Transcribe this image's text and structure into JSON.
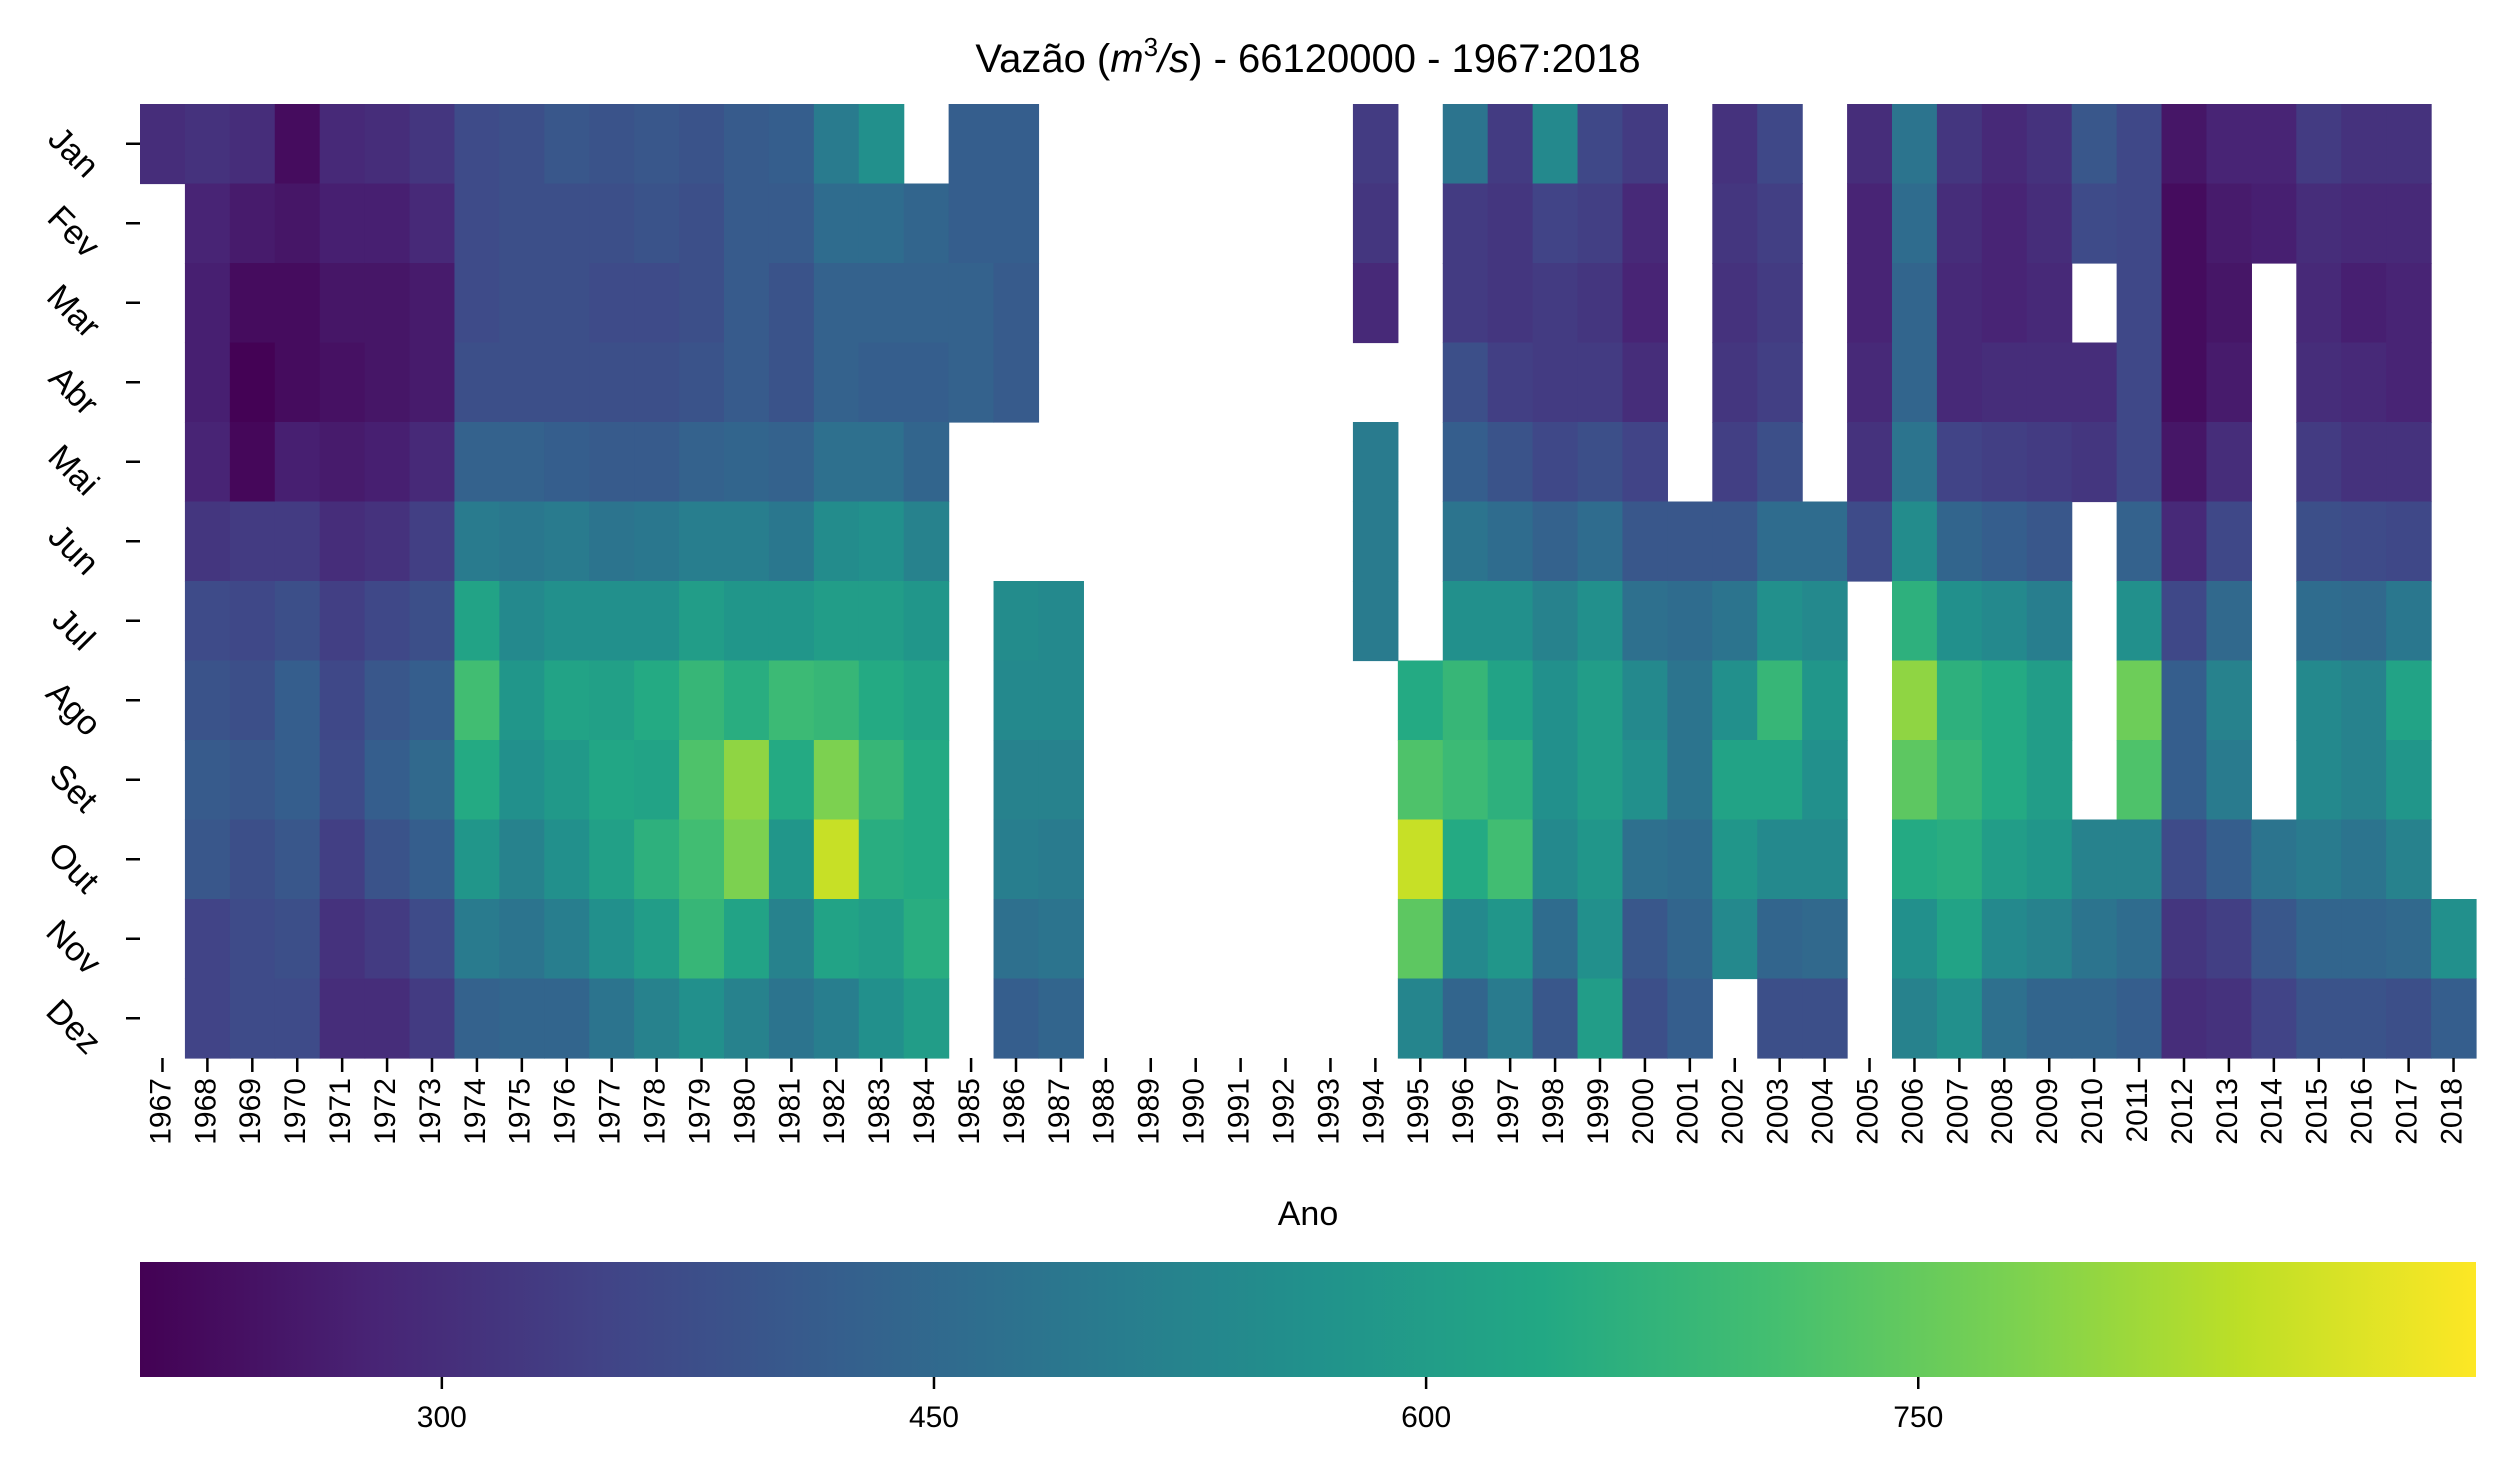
{
  "chart_data": {
    "type": "heatmap",
    "title": "Vazão (m³/s) - 66120000 - 1967:2018",
    "title_parts": [
      "Vazão (",
      "m",
      "3",
      "/",
      "s",
      ") - 66120000 - 1967:2018"
    ],
    "xlabel": "Ano",
    "ylabel": "",
    "colormap": "viridis",
    "colorbar": {
      "vmin": 208,
      "vmax": 920,
      "ticks": [
        "300",
        "450",
        "600",
        "750"
      ],
      "orientation": "horizontal",
      "placement": "bottom"
    },
    "months": [
      "Jan",
      "Fev",
      "Mar",
      "Abr",
      "Mai",
      "Jun",
      "Jul",
      "Ago",
      "Set",
      "Out",
      "Nov",
      "Dez"
    ],
    "years": [
      "1967",
      "1968",
      "1969",
      "1970",
      "1971",
      "1972",
      "1973",
      "1974",
      "1975",
      "1976",
      "1977",
      "1978",
      "1979",
      "1980",
      "1981",
      "1982",
      "1983",
      "1984",
      "1985",
      "1986",
      "1987",
      "1988",
      "1989",
      "1990",
      "1991",
      "1992",
      "1993",
      "1994",
      "1995",
      "1996",
      "1997",
      "1998",
      "1999",
      "2000",
      "2001",
      "2002",
      "2003",
      "2004",
      "2005",
      "2006",
      "2007",
      "2008",
      "2009",
      "2010",
      "2011",
      "2012",
      "2013",
      "2014",
      "2015",
      "2016",
      "2017",
      "2018"
    ],
    "values": [
      [
        300,
        null,
        null,
        null,
        null,
        null,
        null,
        null,
        null,
        null,
        null,
        null
      ],
      [
        310,
        280,
        270,
        270,
        280,
        320,
        370,
        390,
        410,
        400,
        350,
        350
      ],
      [
        300,
        260,
        230,
        210,
        220,
        330,
        360,
        380,
        400,
        380,
        370,
        370
      ],
      [
        230,
        250,
        230,
        230,
        270,
        330,
        380,
        420,
        420,
        400,
        380,
        370
      ],
      [
        290,
        270,
        250,
        240,
        260,
        300,
        340,
        360,
        370,
        340,
        310,
        300
      ],
      [
        300,
        270,
        250,
        250,
        270,
        310,
        360,
        400,
        420,
        390,
        330,
        300
      ],
      [
        320,
        290,
        260,
        260,
        290,
        340,
        380,
        420,
        450,
        420,
        370,
        330
      ],
      [
        370,
        370,
        370,
        380,
        430,
        500,
        620,
        700,
        640,
        580,
        500,
        430
      ],
      [
        380,
        380,
        380,
        380,
        430,
        490,
        540,
        580,
        560,
        520,
        480,
        440
      ],
      [
        400,
        380,
        380,
        380,
        420,
        500,
        560,
        620,
        590,
        560,
        510,
        440
      ],
      [
        390,
        380,
        370,
        380,
        410,
        480,
        560,
        610,
        630,
        610,
        560,
        480
      ],
      [
        400,
        390,
        370,
        380,
        410,
        490,
        560,
        640,
        620,
        660,
        600,
        520
      ],
      [
        390,
        380,
        380,
        390,
        430,
        510,
        600,
        680,
        720,
        700,
        680,
        560
      ],
      [
        410,
        410,
        410,
        410,
        440,
        510,
        580,
        650,
        800,
        780,
        620,
        520
      ],
      [
        420,
        410,
        390,
        390,
        430,
        490,
        580,
        690,
        640,
        580,
        520,
        480
      ],
      [
        500,
        460,
        430,
        430,
        470,
        550,
        600,
        680,
        780,
        860,
        620,
        510
      ],
      [
        560,
        460,
        430,
        420,
        470,
        560,
        600,
        640,
        680,
        650,
        600,
        560
      ],
      [
        null,
        440,
        430,
        420,
        440,
        520,
        580,
        620,
        640,
        640,
        650,
        600
      ],
      [
        420,
        420,
        430,
        430,
        null,
        null,
        null,
        null,
        null,
        null,
        null,
        null
      ],
      [
        420,
        420,
        410,
        410,
        null,
        null,
        550,
        540,
        520,
        510,
        470,
        420
      ],
      [
        null,
        null,
        null,
        null,
        null,
        null,
        540,
        540,
        520,
        500,
        480,
        440
      ],
      [
        null,
        null,
        null,
        null,
        null,
        null,
        null,
        null,
        null,
        null,
        null,
        null
      ],
      [
        null,
        null,
        null,
        null,
        null,
        null,
        null,
        null,
        null,
        null,
        null,
        null
      ],
      [
        null,
        null,
        null,
        null,
        null,
        null,
        null,
        null,
        null,
        null,
        null,
        null
      ],
      [
        null,
        null,
        null,
        null,
        null,
        null,
        null,
        null,
        null,
        null,
        null,
        null
      ],
      [
        null,
        null,
        null,
        null,
        null,
        null,
        null,
        null,
        null,
        null,
        null,
        null
      ],
      [
        null,
        null,
        null,
        null,
        null,
        null,
        null,
        null,
        null,
        null,
        null,
        null
      ],
      [
        330,
        320,
        290,
        null,
        500,
        500,
        500,
        null,
        null,
        null,
        null,
        null
      ],
      [
        null,
        null,
        null,
        null,
        null,
        null,
        null,
        640,
        720,
        860,
        740,
        530
      ],
      [
        480,
        330,
        330,
        380,
        420,
        480,
        560,
        680,
        690,
        640,
        540,
        440
      ],
      [
        330,
        320,
        320,
        340,
        390,
        460,
        560,
        620,
        660,
        700,
        580,
        500
      ],
      [
        540,
        350,
        330,
        330,
        360,
        430,
        520,
        560,
        560,
        540,
        460,
        400
      ],
      [
        360,
        340,
        320,
        330,
        380,
        460,
        560,
        600,
        600,
        580,
        560,
        600
      ],
      [
        330,
        290,
        280,
        300,
        350,
        400,
        470,
        540,
        560,
        470,
        400,
        380
      ],
      [
        null,
        null,
        null,
        null,
        null,
        400,
        460,
        480,
        480,
        460,
        440,
        420
      ],
      [
        310,
        320,
        310,
        320,
        340,
        400,
        480,
        560,
        620,
        580,
        540,
        null
      ],
      [
        360,
        340,
        330,
        340,
        380,
        460,
        560,
        680,
        620,
        540,
        440,
        380
      ],
      [
        null,
        null,
        null,
        null,
        null,
        460,
        540,
        580,
        560,
        540,
        450,
        380
      ],
      [
        300,
        280,
        280,
        290,
        310,
        370,
        null,
        null,
        null,
        null,
        null,
        null
      ],
      [
        480,
        460,
        440,
        440,
        480,
        550,
        660,
        800,
        740,
        640,
        560,
        520
      ],
      [
        320,
        300,
        290,
        290,
        350,
        440,
        560,
        660,
        680,
        650,
        620,
        560
      ],
      [
        290,
        280,
        280,
        300,
        340,
        420,
        540,
        640,
        640,
        600,
        540,
        470
      ],
      [
        310,
        300,
        290,
        300,
        330,
        400,
        510,
        600,
        600,
        580,
        520,
        440
      ],
      [
        400,
        370,
        null,
        300,
        320,
        null,
        null,
        null,
        null,
        520,
        480,
        440
      ],
      [
        360,
        360,
        360,
        360,
        360,
        430,
        560,
        760,
        720,
        520,
        460,
        420
      ],
      [
        250,
        230,
        230,
        230,
        250,
        290,
        360,
        420,
        420,
        370,
        320,
        300
      ],
      [
        280,
        260,
        250,
        260,
        300,
        360,
        450,
        520,
        500,
        420,
        340,
        310
      ],
      [
        280,
        270,
        null,
        null,
        null,
        null,
        null,
        null,
        null,
        480,
        400,
        350
      ],
      [
        330,
        300,
        290,
        300,
        330,
        380,
        460,
        540,
        540,
        500,
        440,
        390
      ],
      [
        310,
        290,
        270,
        290,
        310,
        370,
        450,
        520,
        520,
        480,
        440,
        390
      ],
      [
        310,
        290,
        280,
        280,
        310,
        360,
        490,
        620,
        580,
        520,
        450,
        380
      ],
      [
        null,
        null,
        null,
        null,
        null,
        null,
        null,
        null,
        null,
        null,
        560,
        420
      ]
    ]
  }
}
